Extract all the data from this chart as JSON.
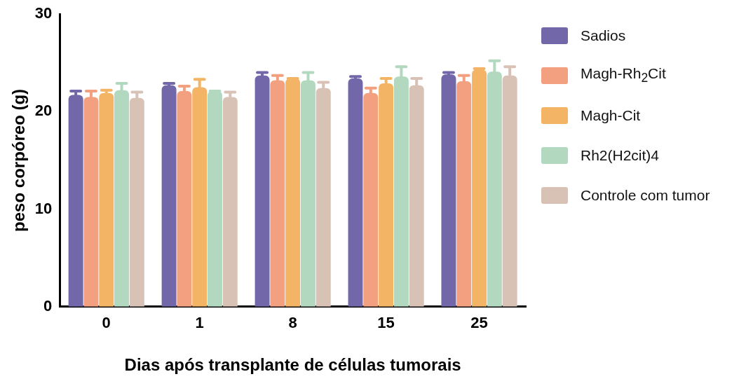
{
  "chart_data": {
    "type": "bar",
    "xlabel": "Dias após transplante de células tumorais",
    "ylabel": "peso corpóreo (g)",
    "categories": [
      "0",
      "1",
      "8",
      "15",
      "25"
    ],
    "series": [
      {
        "name": "Sadios",
        "color": "#7267a8",
        "values": [
          21.7,
          22.7,
          23.7,
          23.4,
          23.8
        ],
        "errors": [
          [
            21.7,
            22.1
          ],
          [
            22.7,
            22.9
          ],
          [
            23.7,
            24.0
          ],
          [
            23.4,
            23.6
          ],
          [
            23.8,
            24.0
          ]
        ]
      },
      {
        "name": "Magh-Rh$_{2}$Cit",
        "color": "#f2a07f",
        "values": [
          21.5,
          22.1,
          23.2,
          21.9,
          23.1
        ],
        "errors": [
          [
            21.5,
            22.1
          ],
          [
            22.1,
            22.6
          ],
          [
            23.2,
            23.7
          ],
          [
            21.9,
            22.4
          ],
          [
            23.1,
            23.7
          ]
        ]
      },
      {
        "name": "Magh-Cit",
        "color": "#f3b466",
        "values": [
          21.9,
          22.5,
          23.4,
          22.9,
          24.3
        ],
        "errors": [
          [
            21.9,
            22.2
          ],
          [
            22.5,
            23.3
          ],
          [
            23.4,
            23.4
          ],
          [
            22.9,
            23.4
          ],
          [
            24.3,
            24.4
          ]
        ]
      },
      {
        "name": "Rh2(H2cit)4",
        "color": "#b2d8bf",
        "values": [
          22.2,
          22.1,
          23.2,
          23.6,
          24.1
        ],
        "errors": [
          [
            22.2,
            22.9
          ],
          [
            22.1,
            22.1
          ],
          [
            23.2,
            24.0
          ],
          [
            23.6,
            24.6
          ],
          [
            24.1,
            25.2
          ]
        ]
      },
      {
        "name": "Controle com tumor",
        "color": "#d8c2b6",
        "values": [
          21.4,
          21.5,
          22.4,
          22.7,
          23.7
        ],
        "errors": [
          [
            21.4,
            22.0
          ],
          [
            21.5,
            22.0
          ],
          [
            22.4,
            23.0
          ],
          [
            22.7,
            23.4
          ],
          [
            23.7,
            24.6
          ]
        ]
      }
    ],
    "ylim": [
      0,
      30
    ],
    "yticks": [
      0,
      10,
      20,
      30
    ],
    "grid": false,
    "legend": "top right"
  }
}
